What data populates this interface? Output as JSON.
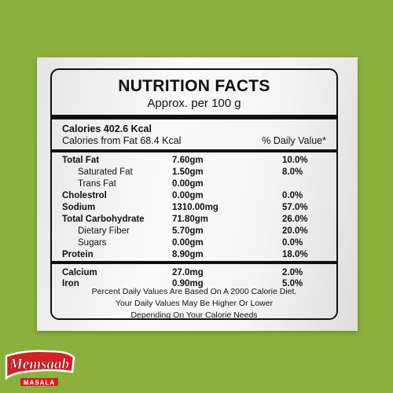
{
  "panel": {
    "title": "NUTRITION FACTS",
    "subtitle": "Approx. per 100 g",
    "calories": "Calories 402.6 Kcal",
    "calories_fat": "Calories from Fat 68.4 Kcal",
    "daily_value_header": "% Daily Value*"
  },
  "nutrients": [
    {
      "name": "Total Fat",
      "amount": "7.60gm",
      "percent": "10.0%",
      "bold": true
    },
    {
      "name": "Saturated Fat",
      "amount": "1.50gm",
      "percent": "8.0%",
      "bold": false
    },
    {
      "name": "Trans Fat",
      "amount": "0.00gm",
      "percent": "",
      "bold": false
    },
    {
      "name": "Cholestrol",
      "amount": "0.00gm",
      "percent": "0.0%",
      "bold": true
    },
    {
      "name": "Sodium",
      "amount": "1310.00mg",
      "percent": "57.0%",
      "bold": true
    },
    {
      "name": "Total Carbohydrate",
      "amount": "71.80gm",
      "percent": "26.0%",
      "bold": true
    },
    {
      "name": "Dietary Fiber",
      "amount": "5.70gm",
      "percent": "20.0%",
      "bold": false
    },
    {
      "name": "Sugars",
      "amount": "0.00gm",
      "percent": "0.0%",
      "bold": false
    },
    {
      "name": "Protein",
      "amount": "8.90gm",
      "percent": "18.0%",
      "bold": true
    }
  ],
  "minerals": [
    {
      "name": "Calcium",
      "amount": "27.0mg",
      "percent": "2.0%",
      "bold": true
    },
    {
      "name": "Iron",
      "amount": "0.90mg",
      "percent": "5.0%",
      "bold": true
    }
  ],
  "footnote": [
    "Percent Daily Values Are Based On A 2000 Calorie Diet.",
    "Your Daily Values May Be Higher Or Lower",
    "Depending On Your Calorie Needs"
  ],
  "brand": {
    "logo_text": "Memsaab",
    "logo_subtext": "MASALA"
  },
  "colors": {
    "background": "#8bb13c",
    "logo_red": "#d71f26"
  }
}
